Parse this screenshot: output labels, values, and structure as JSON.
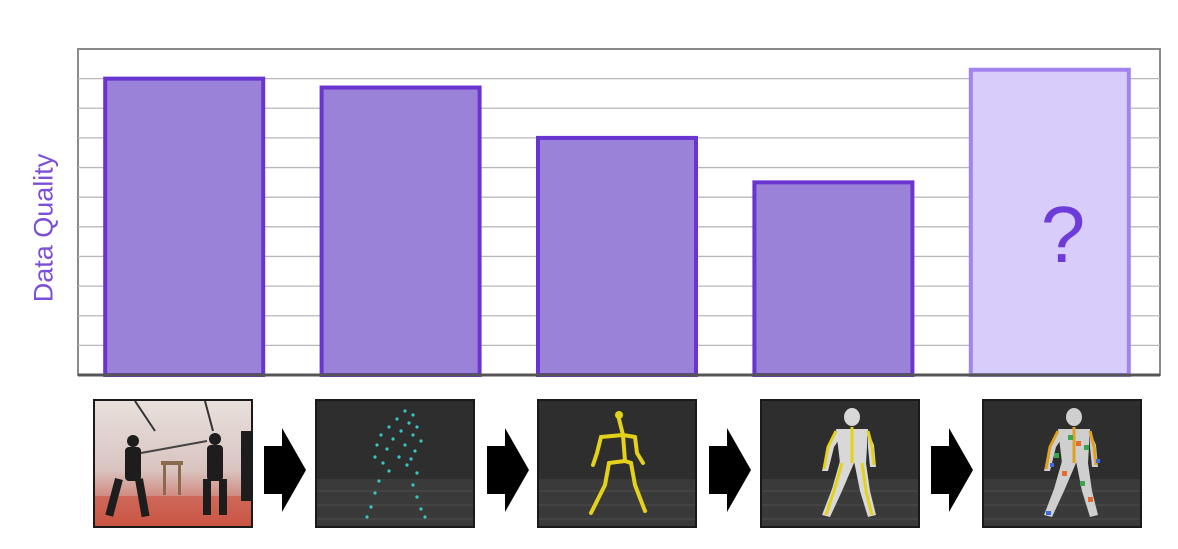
{
  "chart_data": {
    "type": "bar",
    "categories": [
      "",
      "",
      "",
      "",
      ""
    ],
    "values": [
      10.0,
      9.7,
      8.0,
      6.5,
      10.3
    ],
    "ylabel": "Data Quality",
    "ylim": [
      0,
      11
    ],
    "grid": true,
    "unknown_bar_label": "?",
    "colors": {
      "bar_fill": "#9b82d9",
      "bar_stroke": "#6a34d0",
      "unknown_fill": "#d8ccfb",
      "unknown_stroke": "#a184ee",
      "question_mark": "#6d3bd8",
      "grid": "#b8b8b8",
      "axis": "#8a8a8a"
    }
  },
  "pipeline_steps": [
    {
      "icon": "motion-capture-photo"
    },
    {
      "icon": "marker-point-cloud"
    },
    {
      "icon": "skeleton"
    },
    {
      "icon": "body-mesh"
    },
    {
      "icon": "detailed-body-mesh"
    }
  ]
}
